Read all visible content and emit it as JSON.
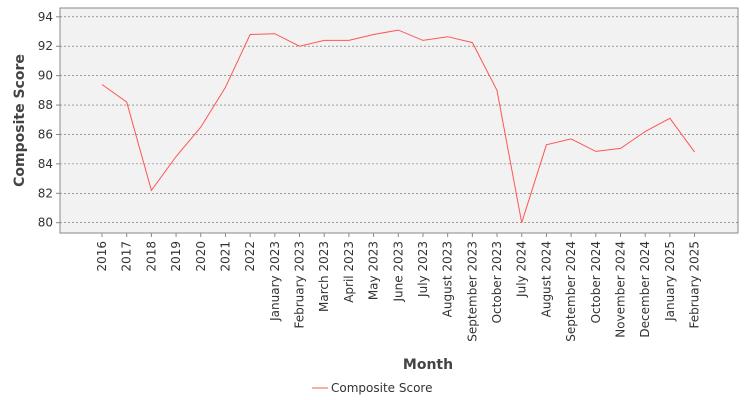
{
  "chart_data": {
    "type": "line",
    "xlabel": "Month",
    "ylabel": "Composite Score",
    "ylim": [
      79.3,
      94.6
    ],
    "yticks": [
      80,
      82,
      84,
      86,
      88,
      90,
      92,
      94
    ],
    "grid": true,
    "legend_position": "bottom",
    "categories": [
      "2016",
      "2017",
      "2018",
      "2019",
      "2020",
      "2021",
      "2022",
      "January 2023",
      "February 2023",
      "March 2023",
      "April 2023",
      "May 2023",
      "June 2023",
      "July 2023",
      "August 2023",
      "September 2023",
      "October 2023",
      "July 2024",
      "August 2024",
      "September 2024",
      "October 2024",
      "November 2024",
      "December 2024",
      "January 2025",
      "February 2025"
    ],
    "series": [
      {
        "name": "Composite Score",
        "color": "#ff5555",
        "values": [
          89.4,
          88.2,
          82.2,
          84.5,
          86.5,
          89.2,
          92.8,
          92.85,
          92.0,
          92.4,
          92.4,
          92.8,
          93.1,
          92.4,
          92.65,
          92.25,
          89.0,
          80.0,
          85.3,
          85.7,
          84.85,
          85.05,
          86.2,
          87.1,
          84.8
        ]
      }
    ]
  }
}
